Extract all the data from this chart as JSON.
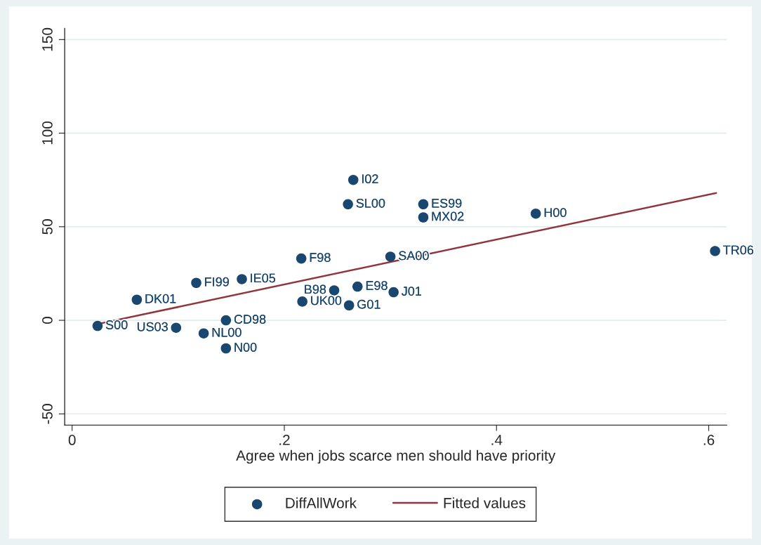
{
  "chart_data": {
    "type": "scatter",
    "xlabel": "Agree when jobs scarce men should have priority",
    "xlim": [
      -0.007,
      0.617
    ],
    "ylim": [
      -56,
      156
    ],
    "xticks": [
      0,
      {
        "value": 0.2,
        "label": ".2"
      },
      {
        "value": 0.4,
        "label": ".4"
      },
      {
        "value": 0.6,
        "label": ".6"
      }
    ],
    "yticks": [
      -50,
      0,
      50,
      100,
      150
    ],
    "grid": "y",
    "legend": "bottom",
    "series": [
      {
        "name": "DiffAllWork",
        "marker": "circle",
        "color": "#1a476f",
        "x": [
          0.024,
          0.061,
          0.117,
          0.16,
          0.098,
          0.124,
          0.145,
          0.145,
          0.216,
          0.217,
          0.247,
          0.269,
          0.261,
          0.265,
          0.26,
          0.3,
          0.303,
          0.331,
          0.331,
          0.437,
          0.606
        ],
        "values": [
          -3,
          11,
          20,
          22,
          -4,
          -7,
          0,
          -15,
          33,
          10,
          16,
          18,
          8,
          75,
          62,
          34,
          15,
          62,
          55,
          57,
          37
        ]
      },
      {
        "name": "Fitted values",
        "type": "line",
        "color": "#90353b",
        "x": [
          0.024,
          0.607
        ],
        "values": [
          -2,
          68
        ]
      }
    ],
    "annotations": [
      {
        "text": "S00",
        "x": 0.024,
        "y": -3
      },
      {
        "text": "DK01",
        "x": 0.061,
        "y": 11
      },
      {
        "text": "FI99",
        "x": 0.117,
        "y": 20
      },
      {
        "text": "IE05",
        "x": 0.16,
        "y": 22
      },
      {
        "text": "US03",
        "x": 0.098,
        "y": -4
      },
      {
        "text": "NL00",
        "x": 0.124,
        "y": -7
      },
      {
        "text": "CD98",
        "x": 0.145,
        "y": 0
      },
      {
        "text": "N00",
        "x": 0.145,
        "y": -15
      },
      {
        "text": "F98",
        "x": 0.216,
        "y": 33
      },
      {
        "text": "UK00",
        "x": 0.217,
        "y": 10
      },
      {
        "text": "B98",
        "x": 0.247,
        "y": 16
      },
      {
        "text": "E98",
        "x": 0.269,
        "y": 18
      },
      {
        "text": "G01",
        "x": 0.261,
        "y": 8
      },
      {
        "text": "I02",
        "x": 0.265,
        "y": 75
      },
      {
        "text": "SL00",
        "x": 0.26,
        "y": 62
      },
      {
        "text": "SA00",
        "x": 0.3,
        "y": 34
      },
      {
        "text": "J01",
        "x": 0.303,
        "y": 15
      },
      {
        "text": "ES99",
        "x": 0.331,
        "y": 62
      },
      {
        "text": "MX02",
        "x": 0.331,
        "y": 55
      },
      {
        "text": "H00",
        "x": 0.437,
        "y": 57
      },
      {
        "text": "TR06",
        "x": 0.606,
        "y": 37
      }
    ]
  }
}
